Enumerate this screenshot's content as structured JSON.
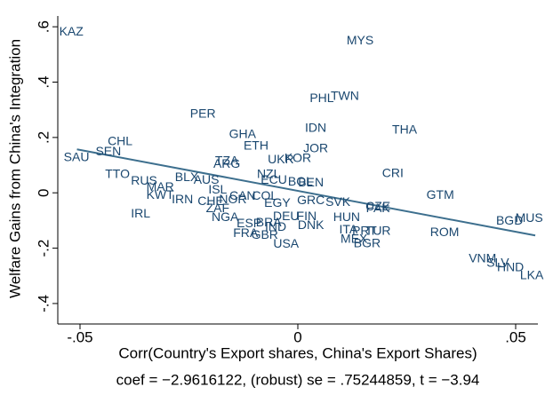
{
  "chart_data": {
    "type": "scatter",
    "xlabel": "Corr(Country's Export shares, China's Export Shares)",
    "ylabel": "Welfare Gains from China's Integration",
    "note": "coef = −2.9616122, (robust) se = .75244859, t = −3.94",
    "labels": [
      "KAZ",
      "MYS",
      "PHL",
      "TWN",
      "PER",
      "IDN",
      "THA",
      "GHA",
      "ETH",
      "JOR",
      "CHL",
      "SEN",
      "SAU",
      "UKR",
      "KOR",
      "TZA",
      "ARG",
      "TTO",
      "CRI",
      "NZL",
      "RUS",
      "BLX",
      "AUS",
      "ECU",
      "BOL",
      "BEN",
      "GTM",
      "MAR",
      "KWT",
      "ISL",
      "CAN",
      "COL",
      "NOR",
      "GRC",
      "EGY",
      "IRN",
      "CHE",
      "IRL",
      "ZAF",
      "NGA",
      "CZE",
      "PAK",
      "SVK",
      "HUN",
      "DEU",
      "FIN",
      "DNK",
      "ITA",
      "PRT",
      "TUR",
      "MEX",
      "BGR",
      "IND",
      "ESP",
      "BRA",
      "GBR",
      "FRA",
      "USA",
      "ROM",
      "BGD",
      "MUS",
      "VNM",
      "SLV",
      "HND",
      "LKA"
    ],
    "x": [
      -0.052,
      0.0143,
      0.0055,
      0.0108,
      -0.0218,
      0.0041,
      0.0245,
      -0.0127,
      -0.0096,
      0.0041,
      -0.0408,
      -0.0435,
      -0.0508,
      -0.0039,
      0,
      -0.0163,
      -0.0163,
      -0.0414,
      0.0218,
      -0.0067,
      -0.0353,
      -0.0255,
      -0.021,
      -0.0055,
      0.0006,
      0.003,
      0.0327,
      -0.0316,
      -0.0316,
      -0.0184,
      -0.0127,
      -0.0076,
      -0.0149,
      0.003,
      -0.0047,
      -0.0265,
      -0.02,
      -0.0361,
      -0.0184,
      -0.0167,
      0.0184,
      0.0184,
      0.0092,
      0.0112,
      -0.0027,
      0.002,
      0.003,
      0.0116,
      0.0153,
      0.0184,
      0.0129,
      0.0159,
      -0.0051,
      -0.0112,
      -0.0067,
      -0.0076,
      -0.012,
      -0.0027,
      0.0337,
      0.0486,
      0.0531,
      0.0424,
      0.0459,
      0.0488,
      0.0537
    ],
    "values": [
      0.58,
      0.548,
      0.339,
      0.348,
      0.284,
      0.232,
      0.226,
      0.21,
      0.168,
      0.158,
      0.184,
      0.148,
      0.126,
      0.119,
      0.123,
      0.113,
      0.103,
      0.065,
      0.068,
      0.065,
      0.042,
      0.055,
      0.045,
      0.045,
      0.039,
      0.035,
      -0.01,
      0.019,
      -0.01,
      0.01,
      -0.013,
      -0.013,
      -0.026,
      -0.029,
      -0.039,
      -0.026,
      -0.032,
      -0.077,
      -0.058,
      -0.09,
      -0.052,
      -0.058,
      -0.035,
      -0.09,
      -0.087,
      -0.087,
      -0.119,
      -0.135,
      -0.139,
      -0.139,
      -0.168,
      -0.184,
      -0.126,
      -0.113,
      -0.11,
      -0.155,
      -0.148,
      -0.187,
      -0.145,
      -0.103,
      -0.094,
      -0.239,
      -0.255,
      -0.271,
      -0.3
    ],
    "color": "#1a476f",
    "fit": {
      "x": [
        -0.0507,
        0.0545
      ],
      "values": [
        0.157,
        -0.154
      ],
      "color": "#3d6f8e"
    },
    "xlim": [
      -0.0551,
      0.0551
    ],
    "ylim": [
      -0.474,
      0.639
    ],
    "xticks": [
      {
        "value": -0.05,
        "label": "-.05"
      },
      0,
      {
        "value": 0.05,
        "label": ".05"
      }
    ],
    "yticks": [
      {
        "value": -0.4,
        "label": "-.4"
      },
      {
        "value": -0.2,
        "label": "-.2"
      },
      0,
      {
        "value": 0.2,
        "label": ".2"
      },
      {
        "value": 0.4,
        "label": ".4"
      },
      {
        "value": 0.6,
        "label": ".6"
      }
    ],
    "grid": false
  }
}
